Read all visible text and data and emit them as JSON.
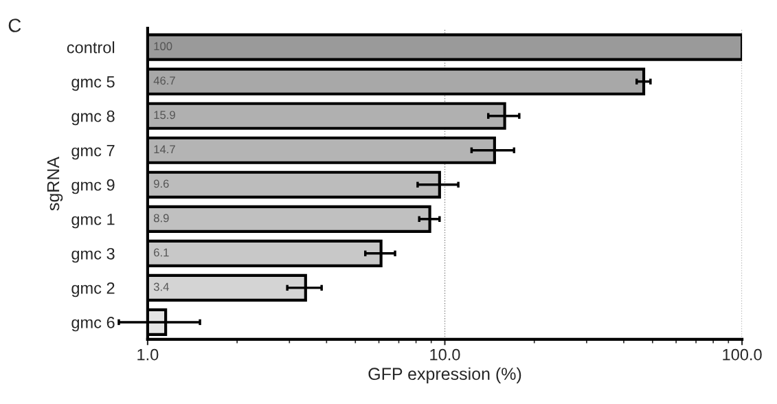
{
  "chart_data": {
    "type": "bar",
    "orientation": "horizontal",
    "log": "x",
    "xlabel": "GFP expression (%)",
    "ylabel": "sgRNA",
    "annotations": [
      "C"
    ],
    "categories": [
      "control",
      "gmc 5",
      "gmc 8",
      "gmc 7",
      "gmc 9",
      "gmc 1",
      "gmc 3",
      "gmc 2",
      "gmc 6"
    ],
    "values": [
      100,
      46.7,
      15.9,
      14.7,
      9.6,
      8.9,
      6.1,
      3.4,
      1.15
    ],
    "errors": [
      null,
      2.5,
      1.9,
      2.4,
      1.5,
      0.7,
      0.7,
      0.45,
      0.35
    ],
    "value_labels": [
      "100",
      "46.7",
      "15.9",
      "14.7",
      "9.6",
      "8.9",
      "6.1",
      "3.4",
      null
    ],
    "colors": [
      "#9a9a9a",
      "#a8a8a8",
      "#b0b0b0",
      "#b4b4b4",
      "#bcbcbc",
      "#c0c0c0",
      "#c8c8c8",
      "#d4d4d4",
      "#e4e4e4"
    ],
    "xlim": [
      1,
      100
    ],
    "xticks": [
      {
        "value": 1,
        "label": "1.0"
      },
      {
        "value": 10,
        "label": "10.0"
      },
      {
        "value": 100,
        "label": "100.0"
      }
    ],
    "grid": "x"
  }
}
